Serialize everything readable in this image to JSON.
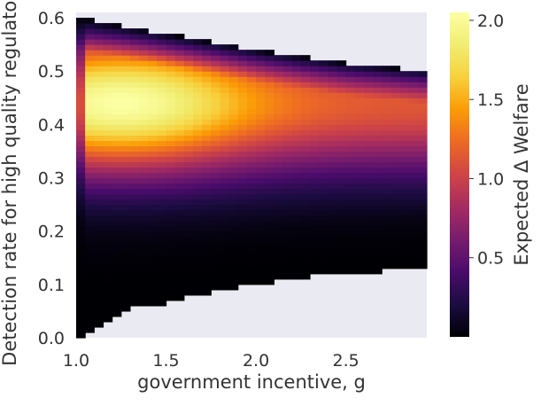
{
  "chart_data": {
    "type": "heatmap",
    "title": "",
    "xlabel": "government incentive, g",
    "ylabel": "Detection rate for high quality regulators",
    "xlim": [
      1.0,
      2.95
    ],
    "ylim": [
      0.0,
      0.61
    ],
    "x_ticks": [
      1.0,
      1.5,
      2.0,
      2.5
    ],
    "x_tick_labels": [
      "1.0",
      "1.5",
      "2.0",
      "2.5"
    ],
    "y_ticks": [
      0.0,
      0.1,
      0.2,
      0.3,
      0.4,
      0.5,
      0.6
    ],
    "y_tick_labels": [
      "0.0",
      "0.1",
      "0.2",
      "0.3",
      "0.4",
      "0.5",
      "0.6"
    ],
    "grid": false,
    "colormap": "inferno",
    "background_color": "#eaeaf2",
    "colorbar": {
      "label": "Expected Δ Welfare",
      "range": [
        0.0,
        2.05
      ],
      "ticks": [
        0.5,
        1.0,
        1.5,
        2.0
      ],
      "tick_labels": [
        "0.5",
        "1.0",
        "1.5",
        "2.0"
      ]
    },
    "region": {
      "description_upper_boundary": [
        [
          1.0,
          0.605
        ],
        [
          1.1,
          0.595
        ],
        [
          1.5,
          0.57
        ],
        [
          2.0,
          0.54
        ],
        [
          2.5,
          0.515
        ],
        [
          2.95,
          0.5
        ]
      ],
      "description_lower_boundary": [
        [
          1.0,
          0.0
        ],
        [
          1.1,
          0.02
        ],
        [
          1.3,
          0.055
        ],
        [
          1.5,
          0.065
        ],
        [
          1.8,
          0.09
        ],
        [
          2.0,
          0.1
        ],
        [
          2.4,
          0.12
        ],
        [
          2.95,
          0.13
        ]
      ]
    },
    "peak": {
      "x": 1.25,
      "y": 0.44,
      "value": 2.05
    }
  }
}
